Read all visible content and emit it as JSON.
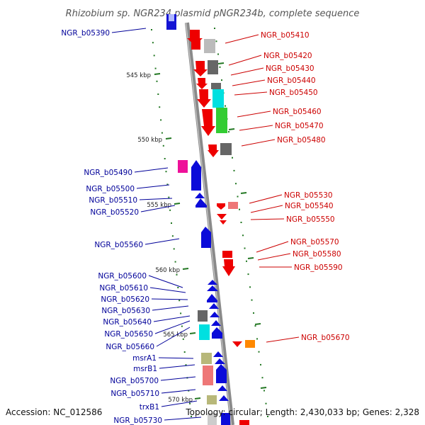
{
  "title": "Rhizobium sp. NGR234 plasmid pNGR234b, complete sequence",
  "footer": {
    "accession": "Accession: NC_012586",
    "summary": "Topology: circular; Length: 2,430,033 bp; Genes: 2,328"
  },
  "colors": {
    "forward_label": "#cc0000",
    "reverse_label": "#000099",
    "backbone": "#888888",
    "gc_dots": "#227722"
  },
  "scale_marks": [
    {
      "label": "545 kbp"
    },
    {
      "label": "550 kbp"
    },
    {
      "label": "555 kbp"
    },
    {
      "label": "560 kbp"
    },
    {
      "label": "565 kbp"
    },
    {
      "label": "570 kbp"
    }
  ],
  "forward_genes": [
    {
      "name": "NGR_b05410"
    },
    {
      "name": "NGR_b05420"
    },
    {
      "name": "NGR_b05430"
    },
    {
      "name": "NGR_b05440"
    },
    {
      "name": "NGR_b05450"
    },
    {
      "name": "NGR_b05460"
    },
    {
      "name": "NGR_b05470"
    },
    {
      "name": "NGR_b05480"
    },
    {
      "name": "NGR_b05530"
    },
    {
      "name": "NGR_b05540"
    },
    {
      "name": "NGR_b05550"
    },
    {
      "name": "NGR_b05570"
    },
    {
      "name": "NGR_b05580"
    },
    {
      "name": "NGR_b05590"
    },
    {
      "name": "NGR_b05670"
    }
  ],
  "reverse_genes": [
    {
      "name": "NGR_b05390"
    },
    {
      "name": "NGR_b05490"
    },
    {
      "name": "NGR_b05500"
    },
    {
      "name": "NGR_b05510"
    },
    {
      "name": "NGR_b05520"
    },
    {
      "name": "NGR_b05560"
    },
    {
      "name": "NGR_b05600"
    },
    {
      "name": "NGR_b05610"
    },
    {
      "name": "NGR_b05620"
    },
    {
      "name": "NGR_b05630"
    },
    {
      "name": "NGR_b05640"
    },
    {
      "name": "NGR_b05650"
    },
    {
      "name": "NGR_b05660"
    },
    {
      "name": "msrA1"
    },
    {
      "name": "msrB1"
    },
    {
      "name": "NGR_b05700"
    },
    {
      "name": "NGR_b05710"
    },
    {
      "name": "trxB1"
    },
    {
      "name": "NGR_b05730"
    }
  ]
}
